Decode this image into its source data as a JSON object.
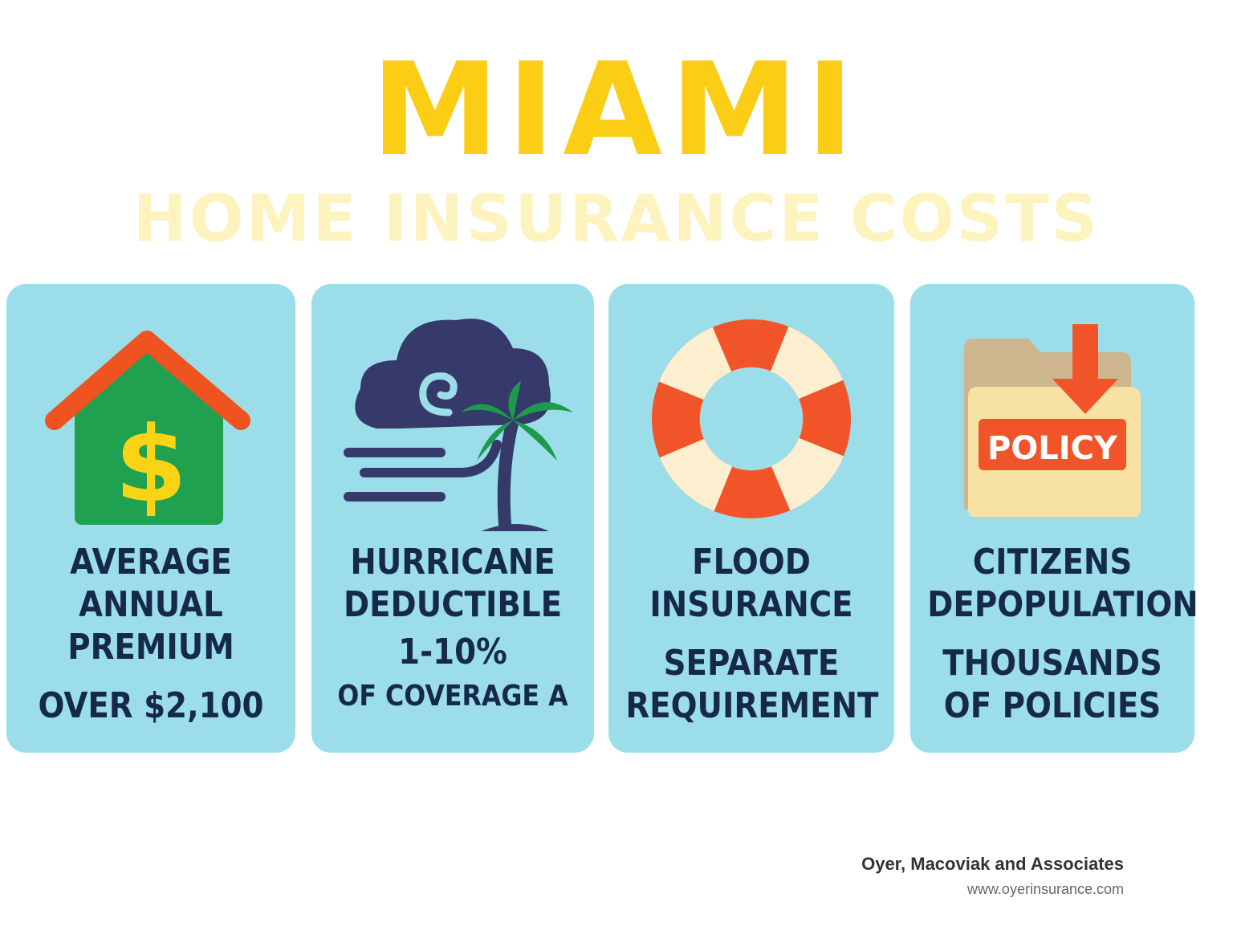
{
  "header": {
    "title": "MIAMI",
    "subtitle": "HOME INSURANCE COSTS"
  },
  "cards": [
    {
      "icon": "house-dollar-icon",
      "label_lines": [
        "AVERAGE",
        "ANNUAL",
        "PREMIUM"
      ],
      "value_lines": [
        "OVER $2,100"
      ]
    },
    {
      "icon": "hurricane-palm-icon",
      "label_lines": [
        "HURRICANE",
        "DEDUCTIBLE"
      ],
      "value_lines": [
        "1-10%",
        "OF COVERAGE A"
      ]
    },
    {
      "icon": "life-ring-icon",
      "label_lines": [
        "FLOOD",
        "INSURANCE"
      ],
      "value_lines": [
        "SEPARATE",
        "REQUIREMENT"
      ]
    },
    {
      "icon": "policy-folder-icon",
      "icon_text": "POLICY",
      "label_lines": [
        "CITIZENS",
        "DEPOPULATION"
      ],
      "value_lines": [
        "THOUSANDS",
        "OF POLICIES"
      ]
    }
  ],
  "footer": {
    "company": "Oyer, Macoviak and Associates",
    "url": "www.oyerinsurance.com"
  },
  "colors": {
    "title": "#fbcd14",
    "subtitle": "#fcf3bf",
    "card_bg": "#9bdeea",
    "card_text": "#16294a",
    "house_green": "#20a150",
    "roof_orange": "#ee5320",
    "dollar_yellow": "#fbd316",
    "cloud_navy": "#353a6a",
    "palm_green": "#1e9a4c",
    "ring_red": "#f2542a",
    "ring_cream": "#fcefd0",
    "folder_tan": "#f8e2a3",
    "folder_back": "#cdb68e"
  }
}
